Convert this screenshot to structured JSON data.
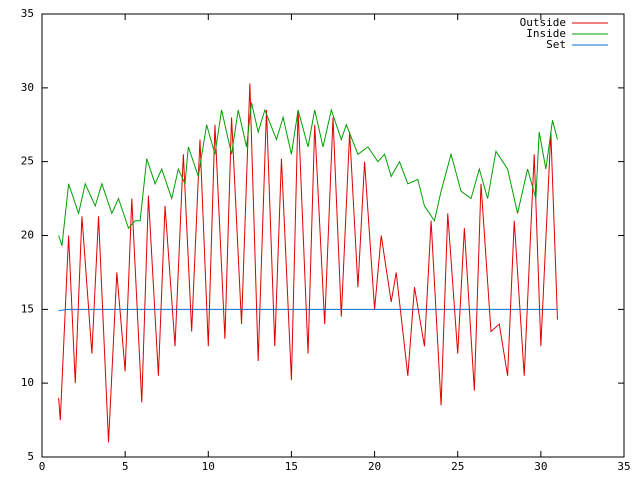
{
  "chart_data": {
    "type": "line",
    "xlim": [
      0,
      35
    ],
    "xticks": [
      0,
      5,
      10,
      15,
      20,
      25,
      30,
      35
    ],
    "ylim": [
      5,
      35
    ],
    "yticks": [
      5,
      10,
      15,
      20,
      25,
      30,
      35
    ],
    "grid": false,
    "legend": "top-right",
    "series": [
      {
        "name": "Outside",
        "color": "#e00000",
        "x": [
          1.0,
          1.1,
          1.6,
          2.0,
          2.4,
          3.0,
          3.4,
          4.0,
          4.5,
          5.0,
          5.4,
          6.0,
          6.4,
          7.0,
          7.4,
          8.0,
          8.5,
          9.0,
          9.5,
          10.0,
          10.4,
          11.0,
          11.4,
          12.0,
          12.5,
          13.0,
          13.5,
          14.0,
          14.4,
          15.0,
          15.4,
          16.0,
          16.4,
          17.0,
          17.5,
          18.0,
          18.5,
          19.0,
          19.4,
          20.0,
          20.4,
          21.0,
          21.3,
          22.0,
          22.4,
          23.0,
          23.4,
          24.0,
          24.4,
          25.0,
          25.4,
          26.0,
          26.4,
          27.0,
          27.5,
          28.0,
          28.4,
          29.0,
          29.6,
          30.0,
          30.6,
          31.0
        ],
        "values": [
          9,
          7.5,
          20,
          10,
          21.3,
          12,
          21.3,
          6,
          17.5,
          10.8,
          22.5,
          8.7,
          22.7,
          10.5,
          22,
          12.5,
          25.5,
          13.5,
          26.5,
          12.5,
          27.5,
          13,
          28,
          14,
          30.3,
          11.5,
          28.5,
          12.5,
          25.2,
          10.2,
          28.5,
          12,
          27.5,
          14,
          28,
          14.5,
          27,
          16.5,
          25,
          15,
          20,
          15.5,
          17.5,
          10.5,
          16.5,
          12.5,
          21,
          8.5,
          21.5,
          12,
          20.5,
          9.5,
          23.5,
          13.5,
          14,
          10.5,
          21,
          10.5,
          25.5,
          12.5,
          27,
          14.3
        ]
      },
      {
        "name": "Inside",
        "color": "#00a000",
        "x": [
          1.0,
          1.2,
          1.6,
          2.2,
          2.6,
          3.2,
          3.6,
          4.2,
          4.6,
          5.2,
          5.6,
          5.9,
          6.3,
          6.8,
          7.2,
          7.8,
          8.2,
          8.6,
          8.8,
          9.4,
          9.9,
          10.4,
          10.8,
          11.4,
          11.8,
          12.3,
          12.6,
          13.0,
          13.4,
          14.1,
          14.5,
          15.0,
          15.4,
          16.0,
          16.4,
          16.9,
          17.4,
          18.0,
          18.3,
          19.0,
          19.6,
          20.2,
          20.6,
          21.0,
          21.5,
          22.0,
          22.6,
          23.0,
          23.6,
          24.0,
          24.6,
          25.2,
          25.8,
          26.3,
          26.8,
          27.3,
          28.0,
          28.6,
          29.2,
          29.7,
          29.9,
          30.3,
          30.7,
          31.0
        ],
        "values": [
          20,
          19.3,
          23.5,
          21.5,
          23.5,
          22,
          23.5,
          21.5,
          22.5,
          20.5,
          21,
          21,
          25.2,
          23.5,
          24.5,
          22.5,
          24.5,
          23.5,
          26,
          24,
          27.5,
          25.5,
          28.5,
          25.5,
          28.5,
          26,
          29,
          27,
          28.5,
          26.5,
          28,
          25.5,
          28.5,
          26,
          28.5,
          26,
          28.5,
          26.5,
          27.5,
          25.5,
          26,
          25,
          25.5,
          24,
          25,
          23.5,
          23.8,
          22,
          21,
          23,
          25.5,
          23,
          22.5,
          24.5,
          22.5,
          25.7,
          24.5,
          21.5,
          24.5,
          22.5,
          27,
          24.5,
          27.8,
          26.5
        ]
      },
      {
        "name": "Set",
        "color": "#0070d0",
        "x": [
          1.0,
          1.5,
          5.0,
          9.0,
          31.0
        ],
        "values": [
          14.9,
          15,
          15,
          15,
          15
        ]
      }
    ]
  }
}
